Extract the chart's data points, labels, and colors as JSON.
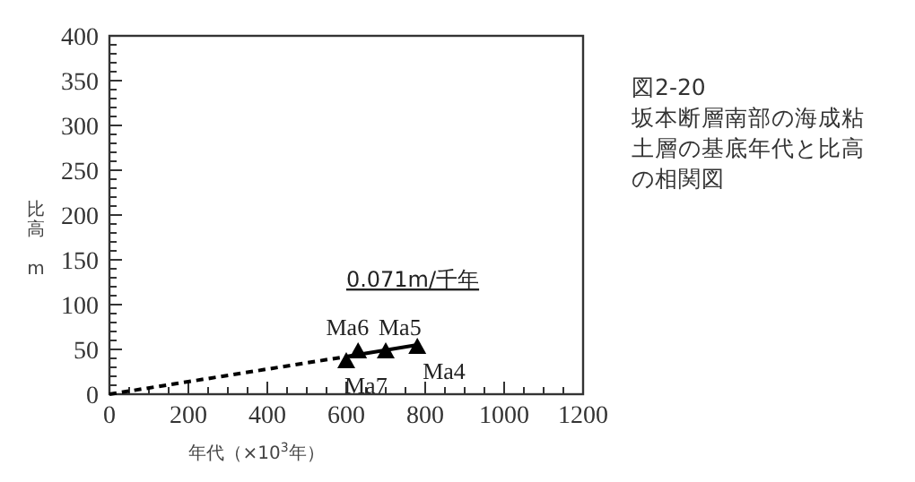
{
  "chart_data": {
    "type": "scatter",
    "title": "図2-20",
    "subtitle": "坂本断層南部の海成粘土層の基底年代と比高の相関図",
    "xlabel": "年代（×10$^{3}$年）",
    "ylabel": "比高 m",
    "xlim": [
      0,
      1200
    ],
    "xticks": [
      0,
      200,
      400,
      600,
      800,
      1000,
      1200
    ],
    "ylim": [
      0,
      400
    ],
    "yticks": [
      0,
      50,
      100,
      150,
      200,
      250,
      300,
      350,
      400
    ],
    "marker": "triangle",
    "grid": false,
    "series": [
      {
        "type": "line",
        "line_style": "dashed",
        "marker": "none",
        "color": "#000000",
        "x": [
          0,
          600
        ],
        "values": [
          0,
          42
        ]
      },
      {
        "type": "line",
        "line_style": "solid",
        "marker": "none",
        "color": "#000000",
        "x": [
          600,
          780
        ],
        "values": [
          42,
          55
        ]
      },
      {
        "color": "#000000",
        "x": [
          600,
          630,
          700,
          780
        ],
        "values": [
          37,
          48,
          48,
          53
        ]
      }
    ],
    "annotations": [
      "0.071m/千年",
      {
        "text": "Ma7",
        "x": 600,
        "y": 37
      },
      {
        "text": "Ma6",
        "x": 630,
        "y": 48
      },
      {
        "text": "Ma5",
        "x": 700,
        "y": 48
      },
      {
        "text": "Ma4",
        "x": 780,
        "y": 53
      }
    ]
  }
}
